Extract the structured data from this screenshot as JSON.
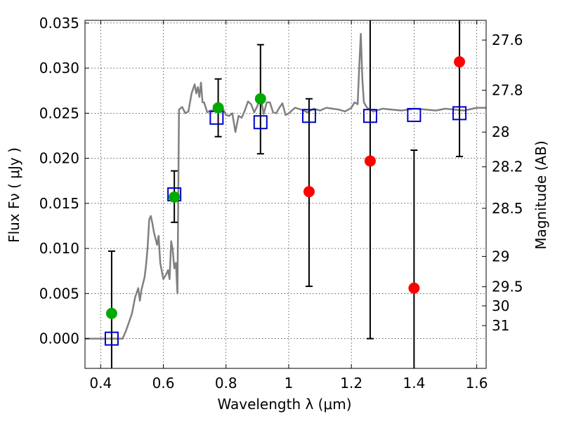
{
  "chart_data": {
    "type": "scatter",
    "xlabel": "Wavelength  λ (μm)",
    "ylabel": "Flux  Fν  ( μJy )",
    "ylabel_right": "Magnitude (AB)",
    "xlim": [
      0.35,
      1.63
    ],
    "ylim": [
      -0.0033,
      0.0353
    ],
    "xticks": [
      {
        "value": 0.4,
        "label": "0.4"
      },
      {
        "value": 0.6,
        "label": "0.6"
      },
      {
        "value": 0.8,
        "label": "0.8"
      },
      {
        "value": 1.0,
        "label": "1"
      },
      {
        "value": 1.2,
        "label": "1.2"
      },
      {
        "value": 1.4,
        "label": "1.4"
      },
      {
        "value": 1.6,
        "label": "1.6"
      }
    ],
    "yticks": [
      {
        "value": 0.0,
        "label": "0.000"
      },
      {
        "value": 0.005,
        "label": "0.005"
      },
      {
        "value": 0.01,
        "label": "0.010"
      },
      {
        "value": 0.015,
        "label": "0.015"
      },
      {
        "value": 0.02,
        "label": "0.020"
      },
      {
        "value": 0.025,
        "label": "0.025"
      },
      {
        "value": 0.03,
        "label": "0.030"
      },
      {
        "value": 0.035,
        "label": "0.035"
      }
    ],
    "right_ticks": [
      {
        "mag": 27.6,
        "label": "27.6"
      },
      {
        "mag": 27.8,
        "label": "27.8"
      },
      {
        "mag": 28.0,
        "label": "28"
      },
      {
        "mag": 28.2,
        "label": "28.2"
      },
      {
        "mag": 28.5,
        "label": "28.5"
      },
      {
        "mag": 29.0,
        "label": "29"
      },
      {
        "mag": 29.5,
        "label": "29.5"
      },
      {
        "mag": 30.0,
        "label": "30"
      },
      {
        "mag": 31.0,
        "label": "31"
      }
    ],
    "grid": true,
    "colors": {
      "model_line": "#808080",
      "model_points": "#0000cc",
      "detections": "#00aa00",
      "nondetections": "#ff0000",
      "errorbar": "#000000"
    },
    "series": [
      {
        "kind": "line",
        "x": [
          0.35,
          0.47,
          0.48,
          0.49,
          0.5,
          0.51,
          0.52,
          0.525,
          0.53,
          0.54,
          0.545,
          0.55,
          0.555,
          0.56,
          0.565,
          0.57,
          0.58,
          0.585,
          0.59,
          0.6,
          0.61,
          0.615,
          0.62,
          0.625,
          0.63,
          0.635,
          0.64,
          0.645,
          0.65,
          0.66,
          0.67,
          0.68,
          0.69,
          0.7,
          0.705,
          0.71,
          0.715,
          0.72,
          0.725,
          0.73,
          0.74,
          0.75,
          0.76,
          0.77,
          0.78,
          0.79,
          0.8,
          0.81,
          0.82,
          0.83,
          0.84,
          0.85,
          0.86,
          0.87,
          0.88,
          0.89,
          0.9,
          0.91,
          0.92,
          0.93,
          0.94,
          0.95,
          0.96,
          0.97,
          0.98,
          0.99,
          1.0,
          1.02,
          1.04,
          1.06,
          1.08,
          1.1,
          1.12,
          1.14,
          1.16,
          1.18,
          1.2,
          1.21,
          1.22,
          1.225,
          1.23,
          1.235,
          1.24,
          1.25,
          1.27,
          1.3,
          1.33,
          1.36,
          1.4,
          1.44,
          1.47,
          1.5,
          1.53,
          1.56,
          1.6,
          1.63
        ],
        "y": [
          0.0,
          0.0,
          0.0008,
          0.0018,
          0.0028,
          0.0046,
          0.0056,
          0.0042,
          0.0054,
          0.0068,
          0.0082,
          0.0102,
          0.0132,
          0.0136,
          0.0128,
          0.0118,
          0.0104,
          0.0114,
          0.0084,
          0.0066,
          0.0072,
          0.0076,
          0.0066,
          0.0108,
          0.0098,
          0.0078,
          0.0084,
          0.005,
          0.0254,
          0.0257,
          0.025,
          0.0252,
          0.0272,
          0.0282,
          0.0272,
          0.0279,
          0.0268,
          0.0284,
          0.0262,
          0.0262,
          0.0251,
          0.0253,
          0.0253,
          0.0259,
          0.0255,
          0.0255,
          0.0248,
          0.0247,
          0.025,
          0.0229,
          0.0247,
          0.0245,
          0.0253,
          0.0263,
          0.026,
          0.0251,
          0.0258,
          0.027,
          0.0249,
          0.0262,
          0.0262,
          0.0251,
          0.025,
          0.0256,
          0.0261,
          0.0248,
          0.025,
          0.0256,
          0.0254,
          0.0251,
          0.0255,
          0.0253,
          0.0256,
          0.0255,
          0.0254,
          0.0252,
          0.0256,
          0.0262,
          0.026,
          0.03,
          0.0338,
          0.0288,
          0.0262,
          0.0256,
          0.0252,
          0.0255,
          0.0254,
          0.0253,
          0.0255,
          0.0254,
          0.0253,
          0.0255,
          0.0254,
          0.0253,
          0.0256,
          0.0256
        ]
      },
      {
        "kind": "open_square",
        "x": [
          0.435,
          0.635,
          0.77,
          0.91,
          1.065,
          1.26,
          1.4,
          1.545
        ],
        "y": [
          0.0,
          0.016,
          0.0245,
          0.024,
          0.0247,
          0.0247,
          0.0248,
          0.025
        ]
      },
      {
        "kind": "filled_circle_green",
        "x": [
          0.435,
          0.635,
          0.775,
          0.91
        ],
        "y": [
          0.0028,
          0.0157,
          0.0256,
          0.0266
        ]
      },
      {
        "kind": "filled_circle_red",
        "x": [
          1.065,
          1.26,
          1.4,
          1.545
        ],
        "y": [
          0.0163,
          0.0197,
          0.0056,
          0.0307
        ]
      },
      {
        "kind": "errorbar",
        "x": [
          0.435,
          0.635,
          0.775,
          0.91,
          1.065,
          1.26,
          1.4,
          1.545
        ],
        "y_low": [
          -0.0033,
          0.0129,
          0.0224,
          0.0205,
          0.0058,
          0.0,
          -0.0033,
          0.0202
        ],
        "y_high": [
          0.0097,
          0.0186,
          0.0288,
          0.0326,
          0.0266,
          0.0353,
          0.0209,
          0.0353
        ]
      }
    ]
  }
}
